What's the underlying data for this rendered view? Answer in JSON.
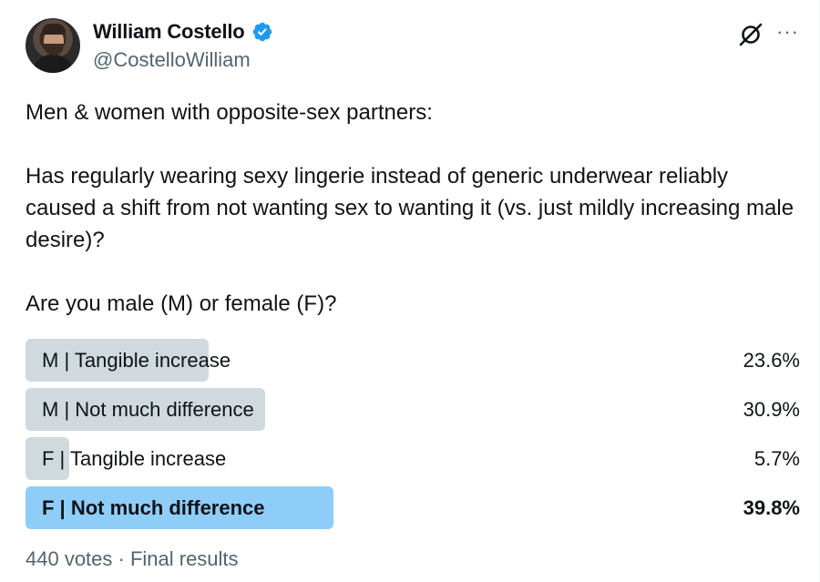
{
  "author": {
    "display_name": "William Costello",
    "handle": "@CostelloWilliam",
    "verified": true,
    "verified_color": "#1d9bf0"
  },
  "icons": {
    "avatar": "avatar",
    "verified": "verified-badge-icon",
    "grok": "grok-icon",
    "more": "more-icon"
  },
  "tweet": {
    "text": "Men & women with opposite-sex partners:\n\nHas regularly wearing sexy lingerie instead of generic underwear reliably caused a shift from not wanting sex to wanting it (vs. just mildly increasing male desire)?\n\nAre you male (M) or female (F)?"
  },
  "poll": {
    "options": [
      {
        "label": "M | Tangible increase",
        "percent_label": "23.6%",
        "percent": 23.6,
        "winner": false
      },
      {
        "label": "M | Not much difference",
        "percent_label": "30.9%",
        "percent": 30.9,
        "winner": false
      },
      {
        "label": "F | Tangible increase",
        "percent_label": "5.7%",
        "percent": 5.7,
        "winner": false
      },
      {
        "label": "F | Not much difference",
        "percent_label": "39.8%",
        "percent": 39.8,
        "winner": true
      }
    ],
    "footer": "440 votes · Final results",
    "bar_color": "#cfd9de",
    "winner_color": "#8ecdf8"
  }
}
